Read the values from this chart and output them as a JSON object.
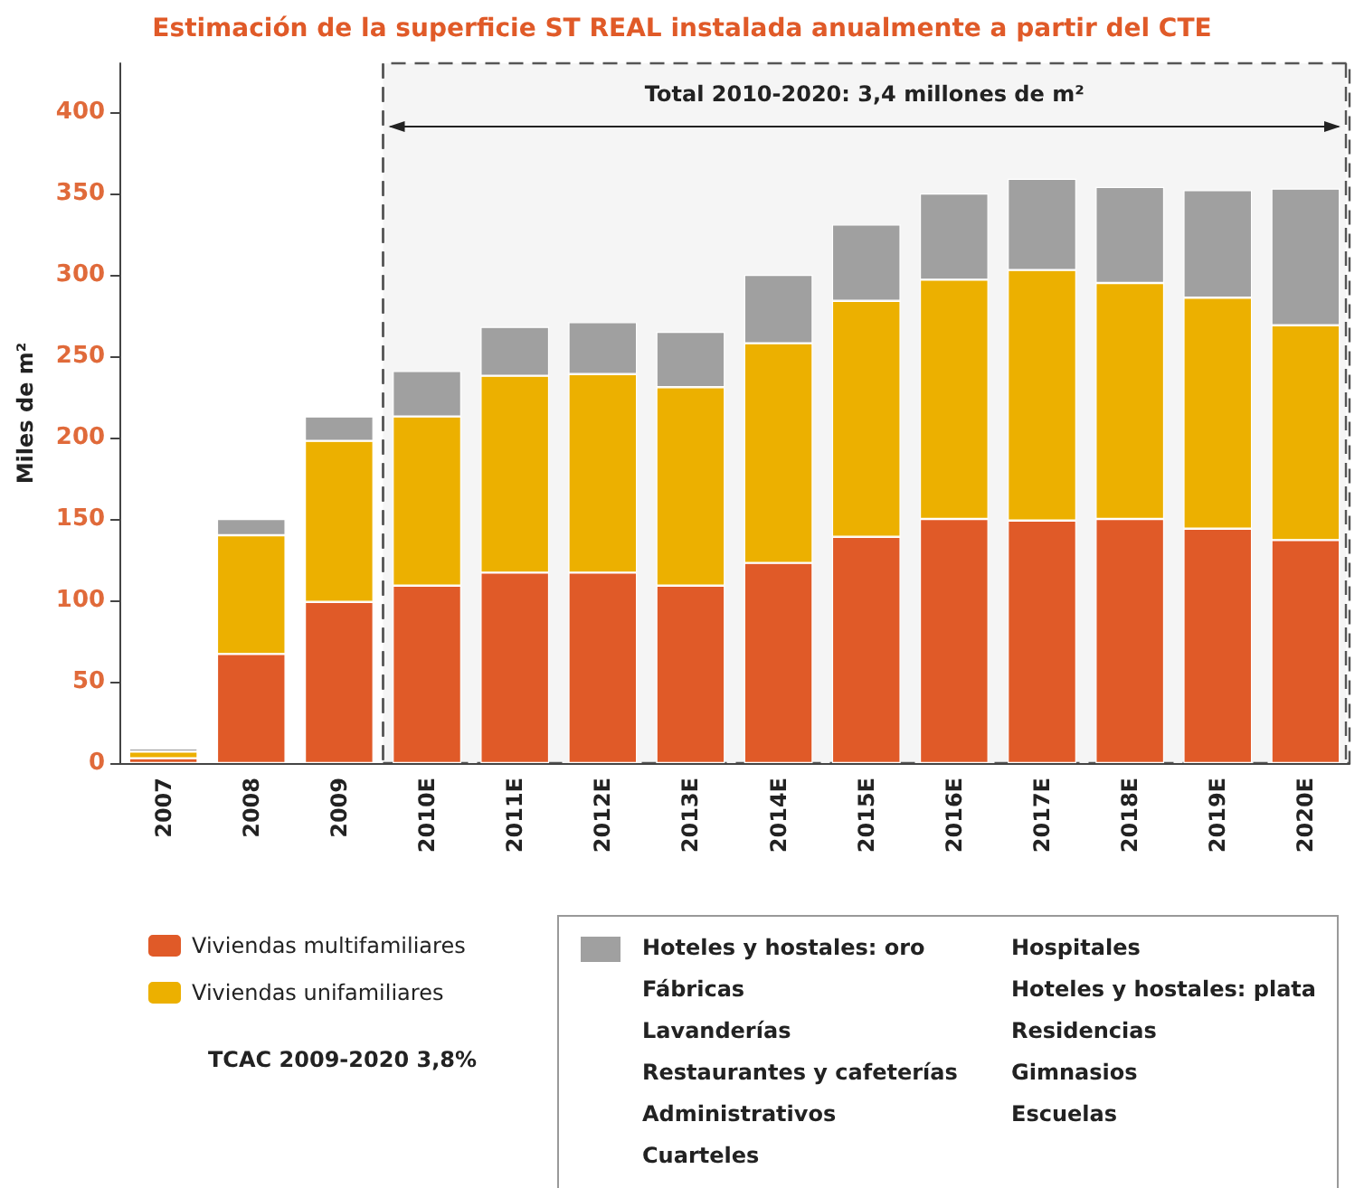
{
  "chart_data": {
    "type": "bar",
    "title": "Estimación de la superficie ST REAL instalada anualmente a partir del CTE",
    "ylabel": "Miles de m²",
    "categories": [
      "2007",
      "2008",
      "2009",
      "2010E",
      "2011E",
      "2012E",
      "2013E",
      "2014E",
      "2015E",
      "2016E",
      "2017E",
      "2018E",
      "2019E",
      "2020E"
    ],
    "series": [
      {
        "name": "Viviendas multifamiliares",
        "color": "#e05a28",
        "values": [
          3,
          67,
          99,
          109,
          117,
          117,
          109,
          123,
          139,
          150,
          149,
          150,
          144,
          137
        ]
      },
      {
        "name": "Viviendas unifamiliares",
        "color": "#ecb000",
        "values": [
          4,
          73,
          99,
          104,
          121,
          122,
          122,
          135,
          145,
          147,
          154,
          145,
          142,
          132
        ]
      },
      {
        "color": "#a0a0a0",
        "values": [
          2,
          10,
          15,
          28,
          30,
          32,
          34,
          42,
          47,
          53,
          56,
          59,
          66,
          84
        ]
      }
    ],
    "stacked": true,
    "ylim": [
      0,
      430
    ],
    "yticks": [
      0,
      50,
      100,
      150,
      200,
      250,
      300,
      350,
      400
    ],
    "grid": false,
    "legend": "bottom left",
    "bands": [
      {
        "axis": "x",
        "from": "2010E",
        "to": "2020E",
        "label": "Total 2010-2020: 3,4 millones de m²"
      }
    ],
    "annotations": [
      "TCAC 2009-2020 3,8%",
      "Hoteles y hostales: oro",
      "Fábricas",
      "Lavanderías",
      "Restaurantes y cafeterías",
      "Administrativos",
      "Cuarteles",
      "Hospitales",
      "Hoteles y hostales: plata",
      "Residencias",
      "Gimnasios",
      "Escuelas"
    ]
  }
}
